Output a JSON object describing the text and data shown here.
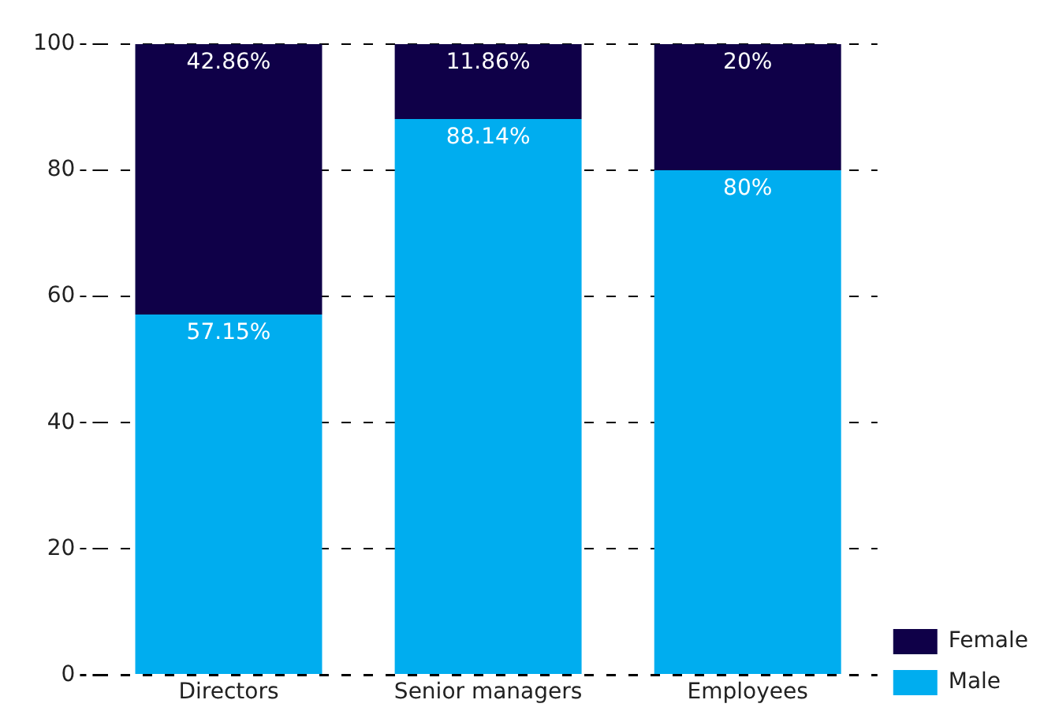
{
  "chart_data": {
    "type": "bar",
    "stacked": true,
    "categories": [
      "Directors",
      "Senior managers",
      "Employees"
    ],
    "series": [
      {
        "name": "Male",
        "color": "#00adef",
        "values": [
          57.15,
          88.14,
          80
        ],
        "value_labels": [
          "57.15%",
          "88.14%",
          "80%"
        ]
      },
      {
        "name": "Female",
        "color": "#0f0048",
        "values": [
          42.86,
          11.86,
          20
        ],
        "value_labels": [
          "42.86%",
          "11.86%",
          "20%"
        ]
      }
    ],
    "ylim": [
      0,
      100
    ],
    "yticks": [
      0,
      20,
      40,
      60,
      80,
      100
    ],
    "grid": "y",
    "legend": "bottom right"
  }
}
